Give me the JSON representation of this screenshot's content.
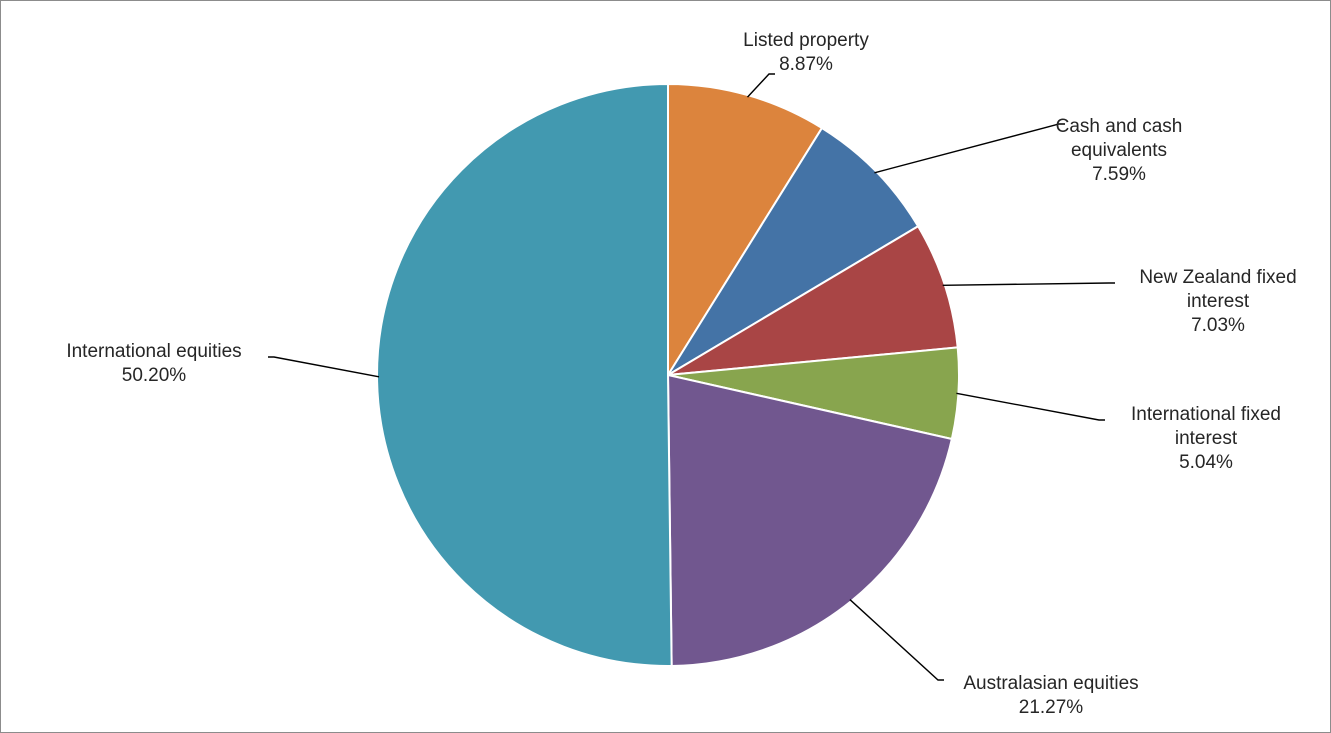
{
  "chart_data": {
    "type": "pie",
    "title": "",
    "slices": [
      {
        "label_lines": [
          "Listed property"
        ],
        "value_label": "8.87%",
        "value": 8.87,
        "color": "#dc843d"
      },
      {
        "label_lines": [
          "Cash and cash",
          "equivalents"
        ],
        "value_label": "7.59%",
        "value": 7.59,
        "color": "#4473a6"
      },
      {
        "label_lines": [
          "New Zealand fixed",
          "interest"
        ],
        "value_label": "7.03%",
        "value": 7.03,
        "color": "#a94545"
      },
      {
        "label_lines": [
          "International fixed",
          "interest"
        ],
        "value_label": "5.04%",
        "value": 5.04,
        "color": "#88a54e"
      },
      {
        "label_lines": [
          "Australasian equities"
        ],
        "value_label": "21.27%",
        "value": 21.27,
        "color": "#71578f"
      },
      {
        "label_lines": [
          "International equities"
        ],
        "value_label": "50.20%",
        "value": 50.2,
        "color": "#4299b0"
      }
    ],
    "legend": "none",
    "start_position": "top",
    "direction": "clockwise"
  }
}
